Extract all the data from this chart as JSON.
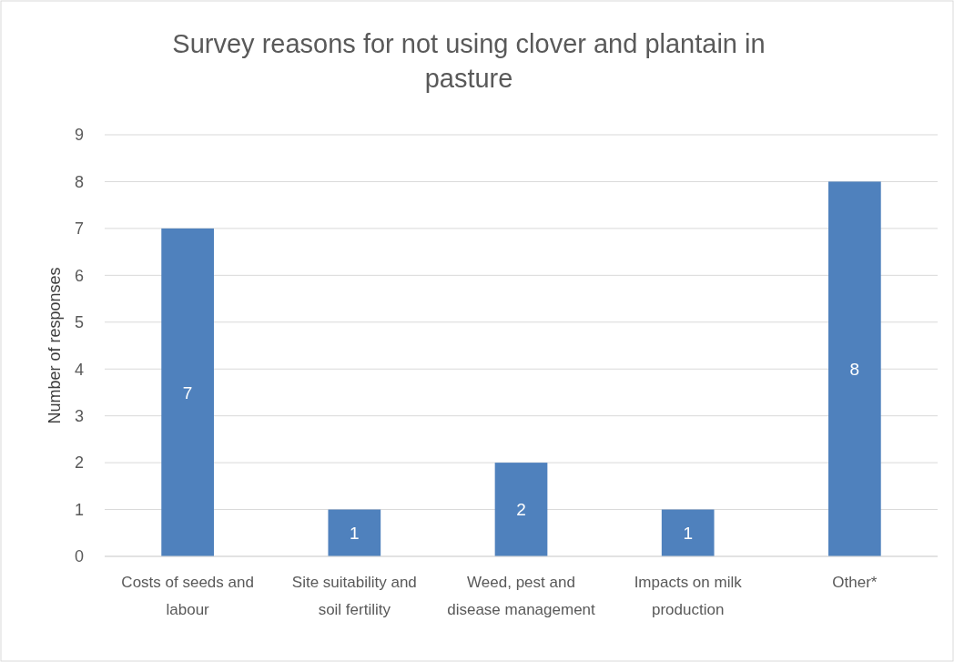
{
  "chart_data": {
    "type": "bar",
    "title": "Survey reasons for not using clover and plantain in pasture",
    "ylabel": "Number of responses",
    "categories": [
      "Costs of seeds and labour",
      "Site suitability and soil fertility",
      "Weed, pest and disease management",
      "Impacts on milk production",
      "Other*"
    ],
    "values": [
      7,
      1,
      2,
      1,
      8
    ],
    "color": "#4f81bd",
    "ylim": [
      0,
      9
    ],
    "yticks": [
      0,
      1,
      2,
      3,
      4,
      5,
      6,
      7,
      8,
      9
    ],
    "grid": "y",
    "data_labels": true
  }
}
